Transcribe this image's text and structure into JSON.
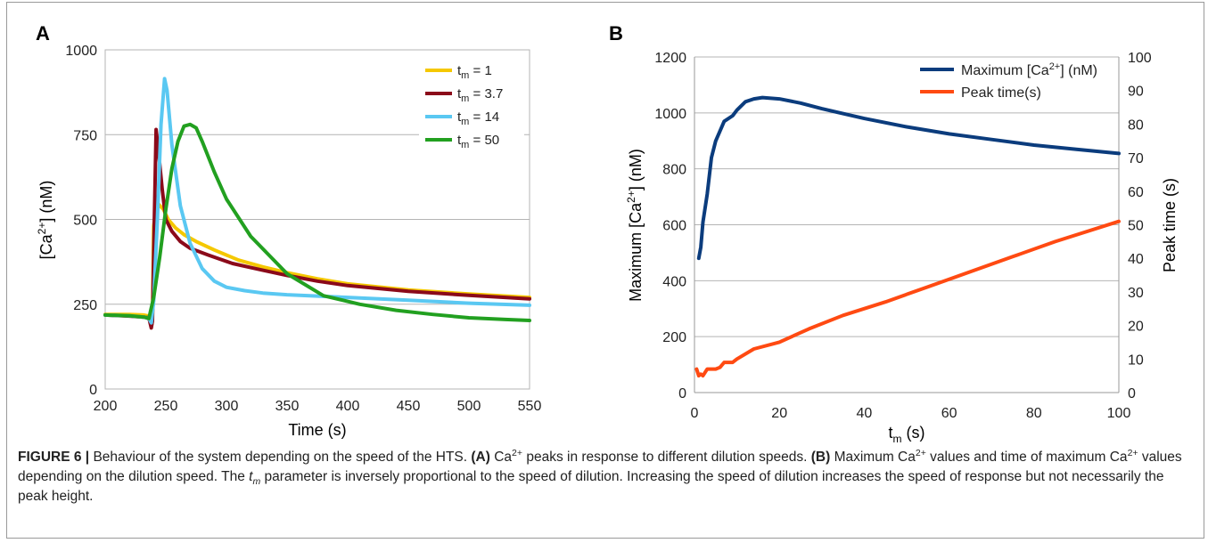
{
  "chart_data": [
    {
      "panel": "A",
      "type": "line",
      "xlabel": "Time (s)",
      "ylabel": "[Ca2+] (nM)",
      "xlim": [
        200,
        550
      ],
      "ylim": [
        0,
        1000
      ],
      "xticks": [
        200,
        250,
        300,
        350,
        400,
        450,
        500,
        550
      ],
      "yticks": [
        0,
        250,
        500,
        750,
        1000
      ],
      "grid": "horizontal",
      "legend_position": "top-right",
      "series": [
        {
          "name": "t_m = 1",
          "color": "#f5c800",
          "x": [
            200,
            220,
            232,
            236,
            238,
            239,
            240,
            242,
            244,
            248,
            252,
            258,
            265,
            275,
            290,
            310,
            330,
            350,
            375,
            400,
            450,
            500,
            550
          ],
          "y": [
            220,
            220,
            218,
            215,
            185,
            200,
            480,
            540,
            545,
            530,
            500,
            475,
            455,
            435,
            410,
            380,
            360,
            343,
            325,
            310,
            292,
            280,
            270
          ]
        },
        {
          "name": "t_m = 3.7",
          "color": "#8b0a1a",
          "x": [
            200,
            220,
            232,
            236,
            238,
            239,
            240,
            242,
            244,
            247,
            250,
            255,
            262,
            270,
            285,
            305,
            330,
            350,
            375,
            400,
            450,
            500,
            550
          ],
          "y": [
            218,
            215,
            212,
            210,
            180,
            200,
            400,
            765,
            700,
            590,
            500,
            465,
            435,
            415,
            395,
            370,
            350,
            335,
            318,
            305,
            288,
            276,
            266
          ]
        },
        {
          "name": "t_m = 14",
          "color": "#5ac8f2",
          "x": [
            200,
            220,
            232,
            236,
            238,
            240,
            243,
            246,
            249,
            251,
            255,
            262,
            270,
            280,
            290,
            300,
            315,
            330,
            350,
            375,
            400,
            450,
            500,
            550
          ],
          "y": [
            218,
            216,
            212,
            208,
            195,
            260,
            500,
            780,
            915,
            880,
            720,
            540,
            430,
            355,
            318,
            300,
            290,
            283,
            278,
            274,
            270,
            262,
            253,
            247
          ]
        },
        {
          "name": "t_m = 50",
          "color": "#22a020",
          "x": [
            200,
            220,
            232,
            236,
            240,
            245,
            250,
            255,
            260,
            265,
            270,
            275,
            280,
            290,
            300,
            320,
            350,
            380,
            410,
            440,
            470,
            500,
            530,
            550
          ],
          "y": [
            218,
            216,
            212,
            208,
            270,
            390,
            530,
            650,
            730,
            775,
            780,
            770,
            730,
            640,
            560,
            450,
            340,
            275,
            250,
            232,
            220,
            210,
            205,
            202
          ]
        }
      ]
    },
    {
      "panel": "B",
      "type": "line",
      "xlabel": "t_m (s)",
      "ylabel": "Maximum [Ca2+] (nM)",
      "y2label": "Peak time (s)",
      "xlim": [
        0,
        100
      ],
      "ylim": [
        0,
        1200
      ],
      "y2lim": [
        0,
        100
      ],
      "xticks": [
        0,
        20,
        40,
        60,
        80,
        100
      ],
      "yticks": [
        0,
        200,
        400,
        600,
        800,
        1000,
        1200
      ],
      "y2ticks": [
        0,
        10,
        20,
        30,
        40,
        50,
        60,
        70,
        80,
        90,
        100
      ],
      "grid": "horizontal",
      "legend_position": "top-right",
      "series": [
        {
          "name": "Maximum [Ca2+] (nM)",
          "axis": "left",
          "color": "#0b3c7d",
          "x": [
            1,
            1.5,
            2,
            3,
            4,
            5,
            7,
            9,
            10,
            12,
            14,
            16,
            20,
            25,
            30,
            40,
            50,
            60,
            70,
            80,
            90,
            100
          ],
          "y": [
            480,
            520,
            610,
            710,
            840,
            900,
            970,
            990,
            1010,
            1040,
            1050,
            1055,
            1050,
            1035,
            1015,
            980,
            950,
            925,
            905,
            885,
            870,
            855
          ]
        },
        {
          "name": "Peak time(s)",
          "axis": "right",
          "color": "#ff4a12",
          "x": [
            0.5,
            1,
            1.5,
            2,
            3,
            3.7,
            5,
            6,
            7,
            9,
            10,
            14,
            20,
            27,
            35,
            45,
            55,
            65,
            75,
            85,
            100
          ],
          "y": [
            7,
            5,
            5.5,
            5,
            7,
            7,
            7,
            7.5,
            9,
            9,
            10,
            13,
            15,
            19,
            23,
            27,
            31.5,
            36,
            40.5,
            45,
            51
          ]
        }
      ]
    }
  ],
  "panels": {
    "a": {
      "letter": "A",
      "ylabel_pre": "[Ca",
      "ylabel_sup": "2+",
      "ylabel_post": "] (nM)",
      "xlabel": "Time (s)",
      "legend": [
        {
          "pre": "t",
          "sub": "m",
          "post": " = 1"
        },
        {
          "pre": "t",
          "sub": "m",
          "post": " = 3.7"
        },
        {
          "pre": "t",
          "sub": "m",
          "post": " = 14"
        },
        {
          "pre": "t",
          "sub": "m",
          "post": " = 50"
        }
      ]
    },
    "b": {
      "letter": "B",
      "ylabel_pre": "Maximum [Ca",
      "ylabel_sup": "2+",
      "ylabel_post": "] (nM)",
      "y2label": "Peak time (s)",
      "xlabel_pre": "t",
      "xlabel_sub": "m",
      "xlabel_post": " (s)",
      "legend": [
        {
          "pre": "Maximum [Ca",
          "sup": "2+",
          "post": "] (nM)"
        },
        {
          "pre": "Peak time(s)",
          "sup": "",
          "post": ""
        }
      ]
    }
  },
  "caption": {
    "label": "FIGURE 6 |",
    "t1": " Behaviour of the system depending on the speed of the HTS. ",
    "a_label": "(A)",
    "t2": " Ca",
    "sup1": "2+",
    "t3": " peaks in response to different dilution speeds. ",
    "b_label": "(B)",
    "t4": " Maximum Ca",
    "sup2": "2+",
    "t5": " values and time of maximum Ca",
    "sup3": "2+",
    "t6": " values depending on the dilution speed. The ",
    "param_t": "t",
    "param_m": "m",
    "t7": " parameter is inversely proportional to the speed of dilution. Increasing the speed of dilution increases the speed of response but not necessarily the peak height."
  }
}
